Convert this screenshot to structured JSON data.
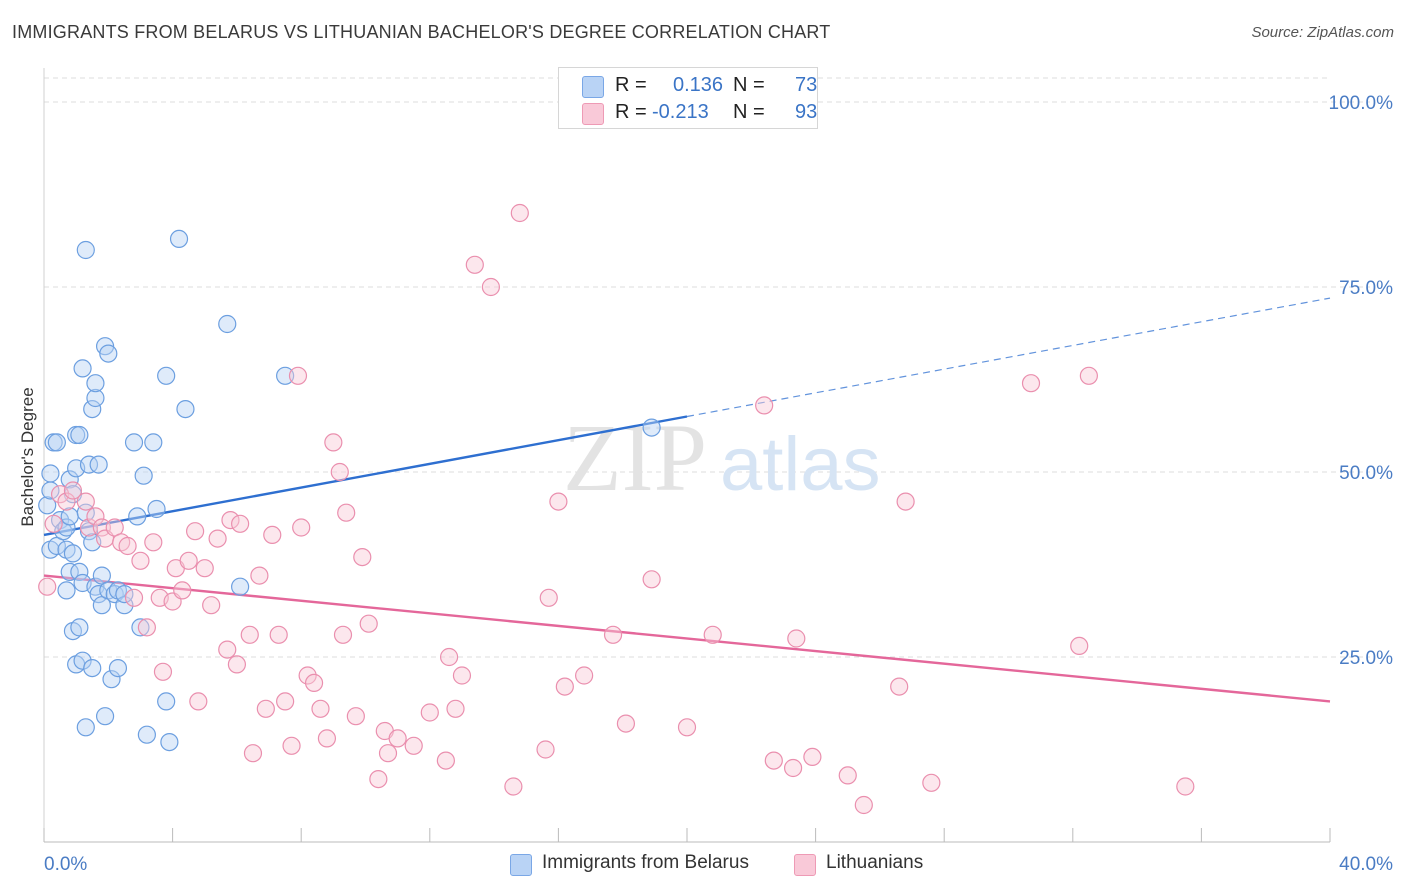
{
  "title": "IMMIGRANTS FROM BELARUS VS LITHUANIAN BACHELOR'S DEGREE CORRELATION CHART",
  "source": "Source: ZipAtlas.com",
  "watermark": {
    "zip": "ZIP",
    "atlas": "atlas"
  },
  "legend": {
    "blue": {
      "r_label": "R =",
      "r_value": "0.136",
      "n_label": "N =",
      "n_value": "73"
    },
    "pink": {
      "r_label": "R =",
      "r_value": "-0.213",
      "n_label": "N =",
      "n_value": "93"
    }
  },
  "colors": {
    "blue_fill": "#b9d3f5",
    "blue_stroke": "#6c9fe0",
    "blue_line": "#2e6fd0",
    "pink_fill": "#f9c9d8",
    "pink_stroke": "#ea8fae",
    "pink_line": "#e4679a",
    "axis_text": "#4a7cc4",
    "grid": "#dedede"
  },
  "chart_data": {
    "type": "scatter",
    "xlabel": "",
    "ylabel": "Bachelor's Degree",
    "xlim": [
      0,
      40
    ],
    "ylim": [
      0,
      100
    ],
    "x_tick_labels": [
      "0.0%",
      "40.0%"
    ],
    "y_tick_labels": [
      "100.0%",
      "75.0%",
      "50.0%",
      "25.0%"
    ],
    "y_ticks": [
      100,
      75,
      50,
      25
    ],
    "grid": true,
    "legend_entries": [
      "Immigrants from Belarus",
      "Lithuanians"
    ],
    "series": [
      {
        "name": "Immigrants from Belarus",
        "color": "blue",
        "trend": {
          "x0": 0,
          "y0": 41.5,
          "x1": 20,
          "y1": 57.5,
          "dashed_to_x": 40,
          "dashed_to_y": 73.5
        },
        "points": [
          [
            0.1,
            45.5
          ],
          [
            0.2,
            39.5
          ],
          [
            0.2,
            47.5
          ],
          [
            0.2,
            49.8
          ],
          [
            0.3,
            54.0
          ],
          [
            0.4,
            40.0
          ],
          [
            0.4,
            54.0
          ],
          [
            0.5,
            43.5
          ],
          [
            0.6,
            42.0
          ],
          [
            0.7,
            42.5
          ],
          [
            0.7,
            39.5
          ],
          [
            0.7,
            34.0
          ],
          [
            0.8,
            36.5
          ],
          [
            0.8,
            44.0
          ],
          [
            0.8,
            49.0
          ],
          [
            0.9,
            28.5
          ],
          [
            0.9,
            47.0
          ],
          [
            0.9,
            39.0
          ],
          [
            1.0,
            55.0
          ],
          [
            1.0,
            50.5
          ],
          [
            1.0,
            24.0
          ],
          [
            1.1,
            55.0
          ],
          [
            1.1,
            29.0
          ],
          [
            1.1,
            36.5
          ],
          [
            1.2,
            64.0
          ],
          [
            1.2,
            35.0
          ],
          [
            1.2,
            24.5
          ],
          [
            1.3,
            44.5
          ],
          [
            1.3,
            80.0
          ],
          [
            1.3,
            15.5
          ],
          [
            1.4,
            42.0
          ],
          [
            1.4,
            51.0
          ],
          [
            1.5,
            58.5
          ],
          [
            1.5,
            40.5
          ],
          [
            1.5,
            23.5
          ],
          [
            1.6,
            60.0
          ],
          [
            1.6,
            62.0
          ],
          [
            1.6,
            34.5
          ],
          [
            1.7,
            51.0
          ],
          [
            1.7,
            33.5
          ],
          [
            1.8,
            32.0
          ],
          [
            1.8,
            36.0
          ],
          [
            1.9,
            17.0
          ],
          [
            1.9,
            67.0
          ],
          [
            2.0,
            66.0
          ],
          [
            2.0,
            34.0
          ],
          [
            2.1,
            22.0
          ],
          [
            2.2,
            33.5
          ],
          [
            2.3,
            23.5
          ],
          [
            2.3,
            34.0
          ],
          [
            2.5,
            32.0
          ],
          [
            2.5,
            33.5
          ],
          [
            2.8,
            54.0
          ],
          [
            2.9,
            44.0
          ],
          [
            3.0,
            29.0
          ],
          [
            3.1,
            49.5
          ],
          [
            3.2,
            14.5
          ],
          [
            3.4,
            54.0
          ],
          [
            3.5,
            45.0
          ],
          [
            3.8,
            19.0
          ],
          [
            3.8,
            63.0
          ],
          [
            3.9,
            13.5
          ],
          [
            4.2,
            81.5
          ],
          [
            4.4,
            58.5
          ],
          [
            5.7,
            70.0
          ],
          [
            6.1,
            34.5
          ],
          [
            7.5,
            63.0
          ],
          [
            18.9,
            56.0
          ]
        ]
      },
      {
        "name": "Lithuanians",
        "color": "pink",
        "trend": {
          "x0": 0,
          "y0": 36.0,
          "x1": 40,
          "y1": 19.0
        },
        "points": [
          [
            0.1,
            34.5
          ],
          [
            0.3,
            43.0
          ],
          [
            0.5,
            47.0
          ],
          [
            0.7,
            46.0
          ],
          [
            0.9,
            47.5
          ],
          [
            1.3,
            46.0
          ],
          [
            1.4,
            42.5
          ],
          [
            1.6,
            44.0
          ],
          [
            1.8,
            42.5
          ],
          [
            1.9,
            41.0
          ],
          [
            2.2,
            42.5
          ],
          [
            2.4,
            40.5
          ],
          [
            2.6,
            40.0
          ],
          [
            2.8,
            33.0
          ],
          [
            3.0,
            38.0
          ],
          [
            3.2,
            29.0
          ],
          [
            3.4,
            40.5
          ],
          [
            3.6,
            33.0
          ],
          [
            3.7,
            23.0
          ],
          [
            4.0,
            32.5
          ],
          [
            4.1,
            37.0
          ],
          [
            4.3,
            34.0
          ],
          [
            4.5,
            38.0
          ],
          [
            4.7,
            42.0
          ],
          [
            4.8,
            19.0
          ],
          [
            5.0,
            37.0
          ],
          [
            5.2,
            32.0
          ],
          [
            5.4,
            41.0
          ],
          [
            5.7,
            26.0
          ],
          [
            5.8,
            43.5
          ],
          [
            6.0,
            24.0
          ],
          [
            6.1,
            43.0
          ],
          [
            6.4,
            28.0
          ],
          [
            6.5,
            12.0
          ],
          [
            6.7,
            36.0
          ],
          [
            6.9,
            18.0
          ],
          [
            7.1,
            41.5
          ],
          [
            7.3,
            28.0
          ],
          [
            7.5,
            19.0
          ],
          [
            7.7,
            13.0
          ],
          [
            7.9,
            63.0
          ],
          [
            8.0,
            42.5
          ],
          [
            8.2,
            22.5
          ],
          [
            8.4,
            21.5
          ],
          [
            8.6,
            18.0
          ],
          [
            8.8,
            14.0
          ],
          [
            9.0,
            54.0
          ],
          [
            9.2,
            50.0
          ],
          [
            9.3,
            28.0
          ],
          [
            9.4,
            44.5
          ],
          [
            9.7,
            17.0
          ],
          [
            9.9,
            38.5
          ],
          [
            10.1,
            29.5
          ],
          [
            10.4,
            8.5
          ],
          [
            10.6,
            15.0
          ],
          [
            10.7,
            12.0
          ],
          [
            11.0,
            14.0
          ],
          [
            11.5,
            13.0
          ],
          [
            12.0,
            17.5
          ],
          [
            12.5,
            11.0
          ],
          [
            12.6,
            25.0
          ],
          [
            12.8,
            18.0
          ],
          [
            13.0,
            22.5
          ],
          [
            13.4,
            78.0
          ],
          [
            13.9,
            75.0
          ],
          [
            14.6,
            7.5
          ],
          [
            14.8,
            85.0
          ],
          [
            15.6,
            12.5
          ],
          [
            15.7,
            33.0
          ],
          [
            16.0,
            46.0
          ],
          [
            16.2,
            21.0
          ],
          [
            16.8,
            22.5
          ],
          [
            17.7,
            28.0
          ],
          [
            18.1,
            16.0
          ],
          [
            18.9,
            35.5
          ],
          [
            20.0,
            15.5
          ],
          [
            20.8,
            28.0
          ],
          [
            22.4,
            59.0
          ],
          [
            22.7,
            11.0
          ],
          [
            23.3,
            10.0
          ],
          [
            23.4,
            27.5
          ],
          [
            23.9,
            11.5
          ],
          [
            25.0,
            9.0
          ],
          [
            25.5,
            5.0
          ],
          [
            26.6,
            21.0
          ],
          [
            26.8,
            46.0
          ],
          [
            27.6,
            8.0
          ],
          [
            30.7,
            62.0
          ],
          [
            32.2,
            26.5
          ],
          [
            32.5,
            63.0
          ],
          [
            35.5,
            7.5
          ]
        ]
      }
    ]
  }
}
